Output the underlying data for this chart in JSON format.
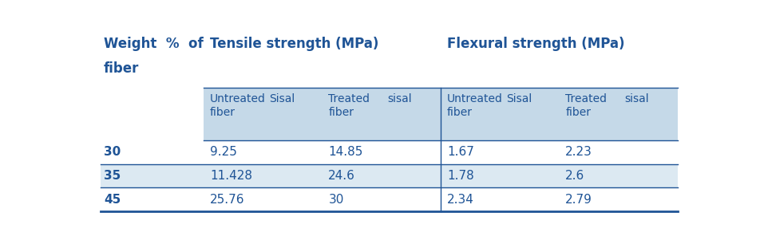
{
  "title_line1": "Weight  %  of",
  "title_line2": "fiber",
  "tensile_header": "Tensile strength (MPa)",
  "flexural_header": "Flexural strength (MPa)",
  "sub_headers": [
    "Untreated\nfiber",
    "Sisal",
    "Treated\nfiber",
    "sisal",
    "Untreated\nfiber",
    "Sisal",
    "Treated\nfiber",
    "sisal"
  ],
  "rows": [
    {
      "weight": "30",
      "values": [
        "9.25",
        "",
        "14.85",
        "",
        "1.67",
        "",
        "2.23",
        ""
      ]
    },
    {
      "weight": "35",
      "values": [
        "11.428",
        "",
        "24.6",
        "",
        "1.78",
        "",
        "2.6",
        ""
      ]
    },
    {
      "weight": "45",
      "values": [
        "25.76",
        "",
        "30",
        "",
        "2.34",
        "",
        "2.79",
        ""
      ]
    }
  ],
  "header_bg": "#c5d9e8",
  "row_bg_light": "#dce9f2",
  "row_bg_white": "#ffffff",
  "text_color": "#1f5496",
  "font_size": 10,
  "header_font_size": 12,
  "line_color": "#1f5496"
}
